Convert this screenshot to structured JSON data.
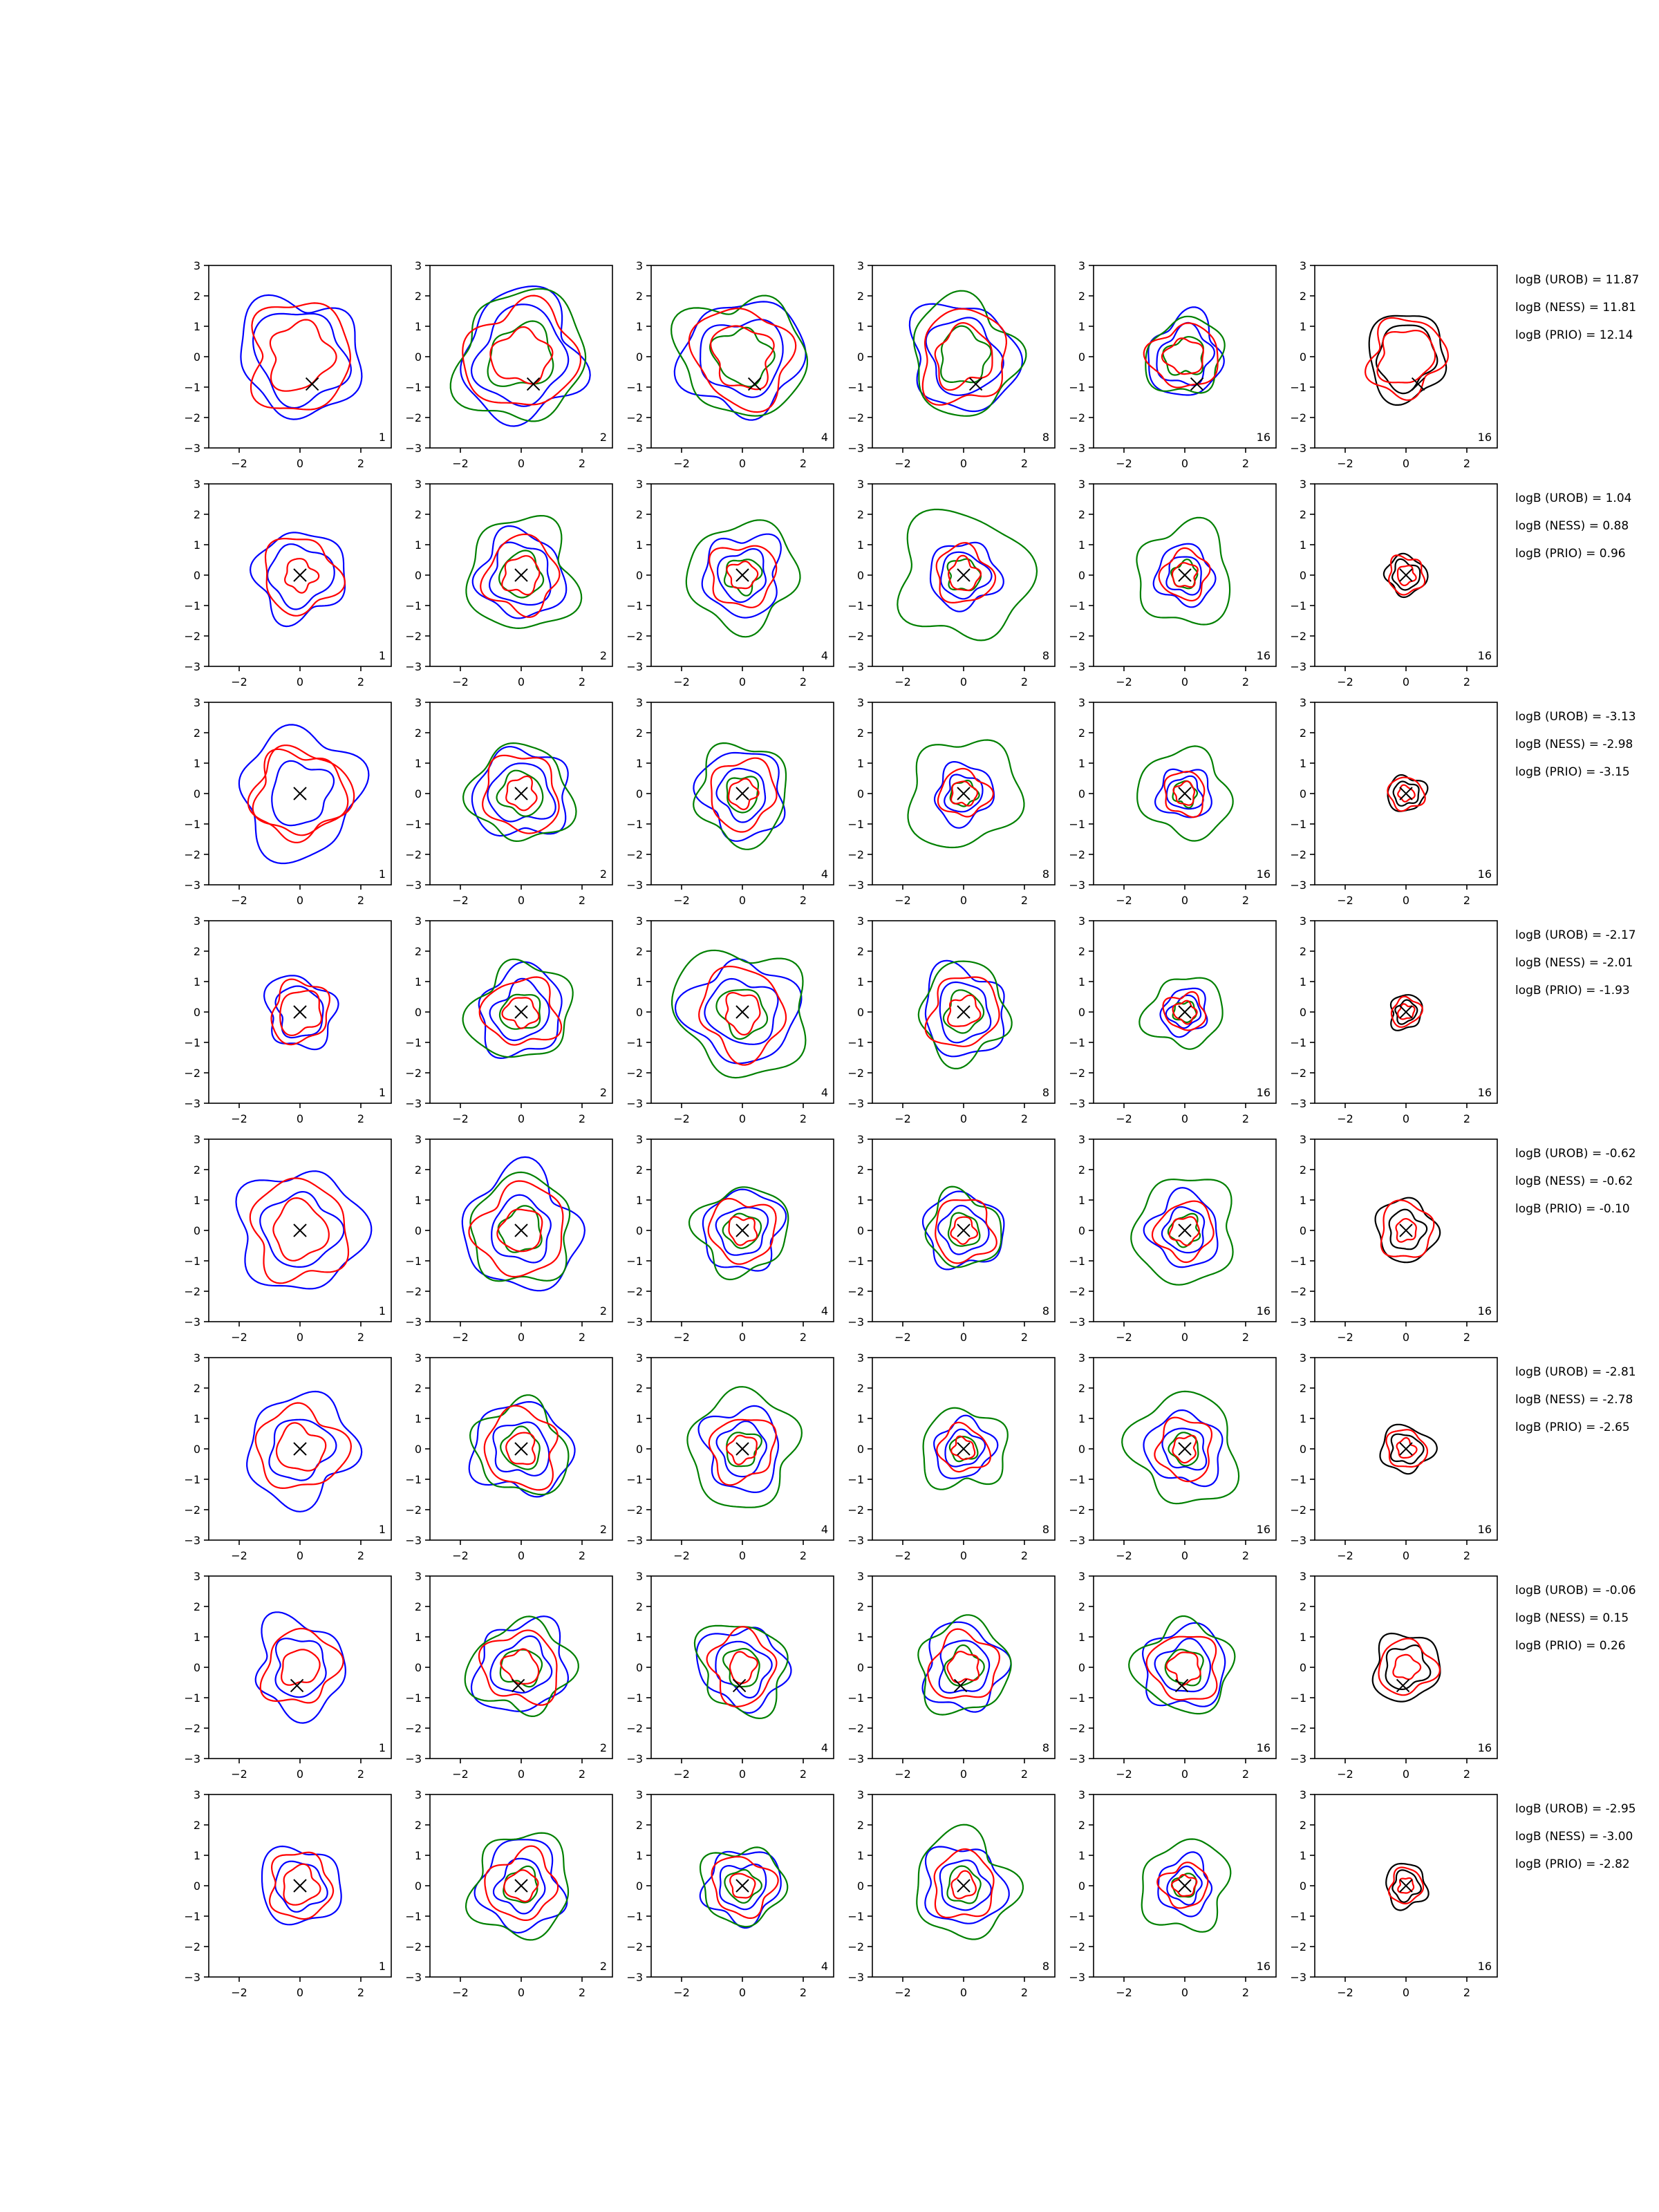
{
  "chart_data": {
    "type": "contour",
    "layout": {
      "rows": 8,
      "cols": 6
    },
    "axes": {
      "xlim": [
        -3,
        3
      ],
      "ylim": [
        -3,
        3
      ],
      "xticks": [
        -2,
        0,
        2
      ],
      "yticks": [
        -3,
        -2,
        -1,
        0,
        1,
        2,
        3
      ],
      "xtick_labels": [
        "−2",
        "0",
        "2"
      ],
      "ytick_labels": [
        "−3",
        "−2",
        "−1",
        "0",
        "1",
        "2",
        "3"
      ]
    },
    "colors": {
      "blue": "#0000ff",
      "red": "#ff0000",
      "green": "#008000",
      "black": "#000000"
    },
    "column_counts": [
      "1",
      "2",
      "4",
      "8",
      "16",
      "16"
    ],
    "rows": [
      {
        "marker": [
          0.4,
          -0.9
        ],
        "annotations": [
          "logB (UROB) = 11.87",
          "logB (NESS) = 11.81",
          "logB (PRIO) = 12.14"
        ],
        "radii": [
          [
            1.95,
            1.5,
            2.0,
            1.05
          ],
          [
            2.0,
            1.5,
            2.1,
            0.9
          ],
          [
            1.9,
            1.3,
            2.0,
            1.0
          ],
          [
            1.75,
            1.2,
            1.8,
            0.95
          ],
          [
            1.25,
            0.9,
            1.25,
            0.6
          ],
          [
            1.35,
            1.0,
            1.45,
            0.9
          ]
        ]
      },
      {
        "marker": [
          0,
          0
        ],
        "annotations": [
          "logB (UROB) = 1.04",
          "logB (NESS) = 0.88",
          "logB (PRIO) = 0.96"
        ],
        "radii": [
          [
            1.45,
            1.0,
            1.5,
            0.5
          ],
          [
            1.4,
            1.0,
            1.8,
            0.6
          ],
          [
            1.3,
            0.8,
            1.75,
            0.45
          ],
          [
            1.1,
            0.75,
            2.1,
            0.5
          ],
          [
            0.95,
            0.6,
            1.6,
            0.4
          ],
          [
            0.65,
            0.45,
            0.7,
            0.3
          ]
        ]
      },
      {
        "marker": [
          0,
          0
        ],
        "annotations": [
          "logB (UROB) = -3.13",
          "logB (NESS) = -2.98",
          "logB (PRIO) = -3.15"
        ],
        "radii": [
          [
            2.0,
            1.0,
            2.0,
            1.4
          ],
          [
            1.5,
            1.0,
            1.6,
            0.5
          ],
          [
            1.4,
            0.8,
            1.55,
            0.45
          ],
          [
            0.95,
            0.6,
            1.8,
            0.4
          ],
          [
            0.85,
            0.55,
            1.45,
            0.35
          ],
          [
            0.6,
            0.4,
            0.65,
            0.25
          ]
        ]
      },
      {
        "marker": [
          0,
          0
        ],
        "annotations": [
          "logB (UROB) = -2.17",
          "logB (NESS) = -2.01",
          "logB (PRIO) = -1.93"
        ],
        "radii": [
          [
            1.15,
            0.8,
            1.75,
            0.7
          ],
          [
            1.4,
            0.9,
            1.6,
            0.5
          ],
          [
            1.7,
            1.1,
            2.1,
            0.6
          ],
          [
            1.4,
            0.9,
            1.5,
            0.5
          ],
          [
            0.75,
            0.5,
            1.2,
            0.35
          ],
          [
            0.55,
            0.35,
            0.55,
            0.25
          ]
        ]
      },
      {
        "marker": [
          0,
          0
        ],
        "annotations": [
          "logB (UROB) = -0.62",
          "logB (NESS) = -0.62",
          "logB (PRIO) = -0.10"
        ],
        "radii": [
          [
            2.0,
            1.2,
            1.65,
            0.9
          ],
          [
            1.9,
            1.0,
            1.7,
            0.7
          ],
          [
            1.3,
            0.8,
            1.45,
            0.45
          ],
          [
            1.25,
            0.75,
            1.2,
            0.4
          ],
          [
            1.15,
            0.7,
            1.7,
            0.45
          ],
          [
            1.0,
            0.6,
            1.05,
            0.35
          ]
        ]
      },
      {
        "marker": [
          0,
          0
        ],
        "annotations": [
          "logB (UROB) = -2.81",
          "logB (NESS) = -2.78",
          "logB (PRIO) = -2.65"
        ],
        "radii": [
          [
            1.75,
            1.0,
            1.55,
            0.75
          ],
          [
            1.55,
            0.9,
            1.5,
            0.5
          ],
          [
            1.3,
            0.8,
            1.8,
            0.45
          ],
          [
            0.95,
            0.6,
            1.35,
            0.35
          ],
          [
            1.2,
            0.7,
            1.75,
            0.4
          ],
          [
            0.8,
            0.5,
            0.75,
            0.3
          ]
        ]
      },
      {
        "marker": [
          -0.1,
          -0.6
        ],
        "annotations": [
          "logB (UROB) = -0.06",
          "logB (NESS) = 0.15",
          "logB (PRIO) = 0.26"
        ],
        "radii": [
          [
            1.5,
            0.9,
            1.45,
            0.6
          ],
          [
            1.5,
            0.9,
            1.55,
            0.55
          ],
          [
            1.35,
            0.85,
            1.45,
            0.45
          ],
          [
            1.35,
            0.85,
            1.5,
            0.5
          ],
          [
            1.35,
            0.85,
            1.5,
            0.5
          ],
          [
            1.1,
            0.7,
            1.05,
            0.4
          ]
        ]
      },
      {
        "marker": [
          0,
          0
        ],
        "annotations": [
          "logB (UROB) = -2.95",
          "logB (NESS) = -3.00",
          "logB (PRIO) = -2.82"
        ],
        "radii": [
          [
            1.3,
            0.8,
            1.3,
            0.6
          ],
          [
            1.4,
            0.8,
            1.65,
            0.5
          ],
          [
            1.2,
            0.75,
            1.3,
            0.4
          ],
          [
            1.3,
            0.8,
            1.65,
            0.4
          ],
          [
            0.9,
            0.55,
            1.45,
            0.35
          ],
          [
            0.7,
            0.45,
            0.65,
            0.25
          ]
        ]
      }
    ]
  }
}
